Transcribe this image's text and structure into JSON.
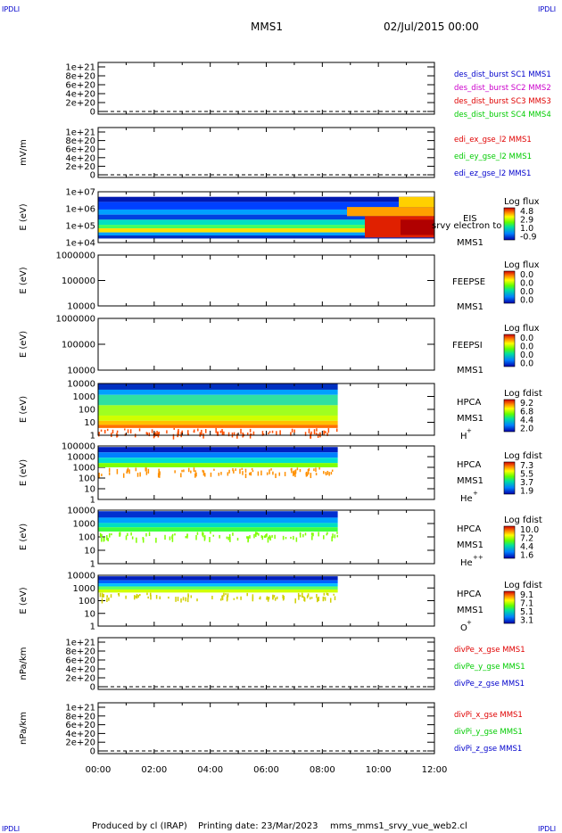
{
  "corner": {
    "tl": "IPDLI",
    "tr": "IPDLI",
    "bl": "IPDLI",
    "br": "IPDLI"
  },
  "header": {
    "mission": "MMS1",
    "date": "02/Jul/2015 00:00"
  },
  "footer": {
    "produced": "Produced by cl (IRAP)",
    "printing": "Printing date: 23/Mar/2023",
    "file": "mms_mms1_srvy_vue_web2.cl"
  },
  "colors": {
    "red": "#e00000",
    "green": "#00cc00",
    "blue": "#0000cc",
    "magenta": "#cc00cc"
  },
  "chart_data": [
    {
      "type": "line",
      "id": "p1",
      "ylabel": "",
      "yticks": [
        "1e+21",
        "8e+20",
        "6e+20",
        "4e+20",
        "2e+20",
        "0"
      ],
      "series": [
        {
          "name": "des_dist_burst SC1 MMS1",
          "color": "#0000cc"
        },
        {
          "name": "des_dist_burst SC2 MMS2",
          "color": "#cc00cc"
        },
        {
          "name": "des_dist_burst SC3 MMS3",
          "color": "#e00000"
        },
        {
          "name": "des_dist_burst SC4 MMS4",
          "color": "#00cc00"
        }
      ]
    },
    {
      "type": "line",
      "id": "p2",
      "ylabel": "mV/m",
      "yticks": [
        "1e+21",
        "8e+20",
        "6e+20",
        "4e+20",
        "2e+20",
        "0"
      ],
      "series": [
        {
          "name": "edi_ex_gse_l2 MMS1",
          "color": "#e00000"
        },
        {
          "name": "edi_ey_gse_l2 MMS1",
          "color": "#00cc00"
        },
        {
          "name": "edi_ez_gse_l2 MMS1",
          "color": "#0000cc"
        }
      ]
    },
    {
      "type": "heatmap",
      "id": "p3",
      "ylabel": "E (eV)",
      "yticks": [
        "1e+07",
        "1e+06",
        "1e+05",
        "1e+04"
      ],
      "labels": [
        "EIS",
        "MMS1"
      ],
      "overlay_text": "srvy electron to",
      "cbar_title": "Log flux",
      "cbar_ticks": [
        "4.8",
        "2.9",
        "1.0",
        "-0.9"
      ]
    },
    {
      "type": "heatmap",
      "id": "p4",
      "ylabel": "E (eV)",
      "yticks": [
        "1000000",
        "100000",
        "10000"
      ],
      "labels": [
        "FEEPSE",
        "MMS1"
      ],
      "cbar_title": "Log flux",
      "cbar_ticks": [
        "0.0",
        "0.0",
        "0.0",
        "0.0"
      ]
    },
    {
      "type": "heatmap",
      "id": "p5",
      "ylabel": "E (eV)",
      "yticks": [
        "1000000",
        "100000",
        "10000"
      ],
      "labels": [
        "FEEPSI",
        "MMS1"
      ],
      "cbar_title": "Log flux",
      "cbar_ticks": [
        "0.0",
        "0.0",
        "0.0",
        "0.0"
      ]
    },
    {
      "type": "heatmap",
      "id": "p6",
      "ylabel": "E (eV)",
      "yticks": [
        "10000",
        "1000",
        "100",
        "10",
        "1"
      ],
      "labels": [
        "HPCA",
        "MMS1"
      ],
      "species": "H",
      "sup": "+",
      "cbar_title": "Log fdist",
      "cbar_ticks": [
        "9.2",
        "6.8",
        "4.4",
        "2.0"
      ]
    },
    {
      "type": "heatmap",
      "id": "p7",
      "ylabel": "E (eV)",
      "yticks": [
        "100000",
        "10000",
        "1000",
        "100",
        "10",
        "1"
      ],
      "labels": [
        "HPCA",
        "MMS1"
      ],
      "species": "He",
      "sup": "+",
      "cbar_title": "Log fdist",
      "cbar_ticks": [
        "7.3",
        "5.5",
        "3.7",
        "1.9"
      ]
    },
    {
      "type": "heatmap",
      "id": "p8",
      "ylabel": "E (eV)",
      "yticks": [
        "10000",
        "1000",
        "100",
        "10",
        "1"
      ],
      "labels": [
        "HPCA",
        "MMS1"
      ],
      "species": "He",
      "sup": "++",
      "cbar_title": "Log fdist",
      "cbar_ticks": [
        "10.0",
        "7.2",
        "4.4",
        "1.6"
      ]
    },
    {
      "type": "heatmap",
      "id": "p9",
      "ylabel": "E (eV)",
      "yticks": [
        "10000",
        "1000",
        "100",
        "10",
        "1"
      ],
      "labels": [
        "HPCA",
        "MMS1"
      ],
      "species": "O",
      "sup": "+",
      "cbar_title": "Log fdist",
      "cbar_ticks": [
        "9.1",
        "7.1",
        "5.1",
        "3.1"
      ]
    },
    {
      "type": "line",
      "id": "p10",
      "ylabel": "nPa/km",
      "yticks": [
        "1e+21",
        "8e+20",
        "6e+20",
        "4e+20",
        "2e+20",
        "0"
      ],
      "series": [
        {
          "name": "divPe_x_gse MMS1",
          "color": "#e00000"
        },
        {
          "name": "divPe_y_gse MMS1",
          "color": "#00cc00"
        },
        {
          "name": "divPe_z_gse MMS1",
          "color": "#0000cc"
        }
      ]
    },
    {
      "type": "line",
      "id": "p11",
      "ylabel": "nPa/km",
      "yticks": [
        "1e+21",
        "8e+20",
        "6e+20",
        "4e+20",
        "2e+20",
        "0"
      ],
      "series": [
        {
          "name": "divPi_x_gse MMS1",
          "color": "#e00000"
        },
        {
          "name": "divPi_y_gse MMS1",
          "color": "#00cc00"
        },
        {
          "name": "divPi_z_gse MMS1",
          "color": "#0000cc"
        }
      ]
    }
  ],
  "xaxis": {
    "ticks": [
      "00:00",
      "02:00",
      "04:00",
      "06:00",
      "08:00",
      "10:00",
      "12:00"
    ]
  }
}
